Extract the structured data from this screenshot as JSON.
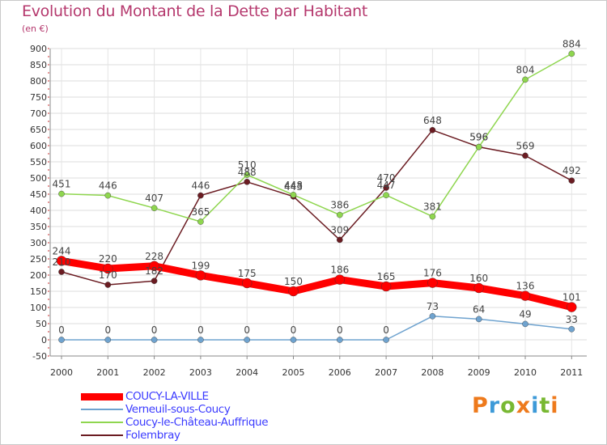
{
  "title": "Evolution du Montant de la Dette par Habitant",
  "unit_label": "(en €)",
  "logo": {
    "letters": [
      "P",
      "r",
      "o",
      "x",
      "i",
      "t",
      "i"
    ],
    "colors": [
      "#ee7a1c",
      "#3d9ad8",
      "#78b832",
      "#ee7a1c",
      "#3d9ad8",
      "#78b832",
      "#ee7a1c"
    ]
  },
  "chart_data": {
    "type": "line",
    "x": [
      "2000",
      "2001",
      "2002",
      "2003",
      "2004",
      "2005",
      "2006",
      "2007",
      "2008",
      "2009",
      "2010",
      "2011"
    ],
    "ylim": [
      -50,
      900
    ],
    "yticks": [
      -50,
      0,
      50,
      100,
      150,
      200,
      250,
      300,
      350,
      400,
      450,
      500,
      550,
      600,
      650,
      700,
      750,
      800,
      850,
      900
    ],
    "grid": true,
    "legend_position": "bottom-left",
    "series": [
      {
        "name": "Folembray",
        "color": "#6b1c22",
        "values": [
          210,
          170,
          182,
          446,
          488,
          443,
          309,
          470,
          648,
          596,
          569,
          492
        ]
      },
      {
        "name": "Coucy-le-Château-Auffrique",
        "color": "#8fd64f",
        "values": [
          451,
          446,
          407,
          365,
          510,
          448,
          386,
          447,
          381,
          596,
          804,
          884
        ]
      },
      {
        "name": "Verneuil-sous-Coucy",
        "color": "#6fa3cf",
        "values": [
          0,
          0,
          0,
          0,
          0,
          0,
          0,
          0,
          73,
          64,
          49,
          33
        ]
      },
      {
        "name": "COUCY-LA-VILLE",
        "color": "#ff0000",
        "values": [
          244,
          220,
          228,
          199,
          175,
          150,
          186,
          165,
          176,
          160,
          136,
          101
        ]
      }
    ],
    "legend": [
      {
        "name": "COUCY-LA-VILLE",
        "color": "#ff0000",
        "text_color": "#3b3bff"
      },
      {
        "name": "Verneuil-sous-Coucy",
        "color": "#6fa3cf",
        "text_color": "#3b3bff"
      },
      {
        "name": "Coucy-le-Château-Auffrique",
        "color": "#8fd64f",
        "text_color": "#3b3bff"
      },
      {
        "name": "Folembray",
        "color": "#6b1c22",
        "text_color": "#3b3bff"
      }
    ]
  }
}
